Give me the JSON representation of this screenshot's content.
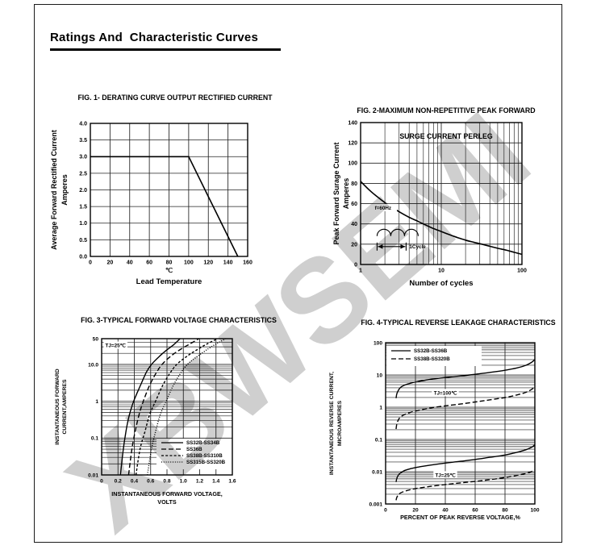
{
  "page": {
    "title": "Ratings And  Characteristic Curves",
    "watermark": "XBWSEMI"
  },
  "chart_data": [
    {
      "id": "fig1",
      "type": "line",
      "title_lines": [
        "FIG. 1- DERATING CURVE OUTPUT RECTIFIED CURRENT"
      ],
      "xlabel_lines": [
        "℃",
        "Lead Temperature"
      ],
      "ylabel_lines": [
        "Average Forward Rectified Current",
        "Amperes"
      ],
      "x": {
        "scale": "linear",
        "min": 0,
        "max": 160,
        "ticks": [
          "0",
          "20",
          "40",
          "60",
          "80",
          "100",
          "120",
          "140",
          "160"
        ]
      },
      "y": {
        "scale": "linear",
        "min": 0,
        "max": 4,
        "ticks": [
          "0.0",
          "0.5",
          "1.0",
          "1.5",
          "2.0",
          "2.5",
          "3.0",
          "3.5",
          "4.0"
        ]
      },
      "series": [
        {
          "name": "derating-curve",
          "dash": "solid",
          "smooth": false,
          "points": [
            [
              0,
              3
            ],
            [
              100,
              3
            ],
            [
              150,
              0
            ]
          ]
        }
      ]
    },
    {
      "id": "fig2",
      "type": "line",
      "title_lines": [
        "FIG. 2-MAXIMUM NON-REPETITIVE PEAK FORWARD",
        "SURGE CURRENT PERLEG"
      ],
      "xlabel_lines": [
        "Number of cycles"
      ],
      "ylabel_lines": [
        "Peak Forward Surage Current",
        "Amperes"
      ],
      "x": {
        "scale": "log",
        "min": 1,
        "max": 100,
        "ticks": [
          "1",
          "10",
          "100"
        ]
      },
      "y": {
        "scale": "linear",
        "min": 0,
        "max": 140,
        "ticks": [
          "0",
          "20",
          "40",
          "60",
          "80",
          "100",
          "120",
          "140"
        ]
      },
      "annotations": [
        {
          "text": "f=60Hz",
          "x": 1.5,
          "y": 56,
          "anchor": "start"
        }
      ],
      "cycle_glyph": {
        "label": "1Cycle",
        "x": 1.6,
        "y": 28
      },
      "series": [
        {
          "name": "surge-current",
          "dash": "solid",
          "smooth": true,
          "points": [
            [
              1,
              82
            ],
            [
              1.3,
              73
            ],
            [
              1.6,
              67
            ],
            [
              2,
              61
            ],
            [
              2.5,
              56
            ],
            [
              3,
              52
            ],
            [
              4,
              46.5
            ],
            [
              5,
              43
            ],
            [
              6,
              40
            ],
            [
              7,
              37.5
            ],
            [
              8,
              35.5
            ],
            [
              10,
              32.5
            ],
            [
              13,
              29
            ],
            [
              16,
              26.5
            ],
            [
              20,
              24
            ],
            [
              25,
              22
            ],
            [
              30,
              20.5
            ],
            [
              40,
              18
            ],
            [
              50,
              16
            ],
            [
              65,
              14
            ],
            [
              80,
              12
            ],
            [
              100,
              10
            ]
          ]
        }
      ]
    },
    {
      "id": "fig3",
      "type": "line",
      "title_lines": [
        "FIG. 3-TYPICAL FORWARD VOLTAGE CHARACTERISTICS"
      ],
      "xlabel_lines": [
        "INSTANTANEOUS FORWARD VOLTAGE,",
        "VOLTS"
      ],
      "ylabel_lines": [
        "INSTANTANEOUS FORWARD",
        "CURRENT,AMPERES"
      ],
      "x": {
        "scale": "linear",
        "min": 0,
        "max": 1.6,
        "ticks": [
          "0",
          "0.2",
          "0.4",
          "0.6",
          "0.8",
          "1.0",
          "1.2",
          "1.4",
          "1.6"
        ]
      },
      "y": {
        "scale": "log",
        "min": 0.01,
        "max": 50,
        "ticks": [
          "0.01",
          "0.1",
          "1",
          "10.0",
          "50"
        ]
      },
      "annotations": [
        {
          "text": "TJ=25℃",
          "x": 0.045,
          "y": 33,
          "anchor": "start"
        }
      ],
      "legend": {
        "items": [
          {
            "label": "SS32B-SS34B",
            "dash": "solid"
          },
          {
            "label": "SS36B",
            "dash": "long-dash"
          },
          {
            "label": "SS38B-SS310B",
            "dash": "short-dash"
          },
          {
            "label": "SS315B-SS320B",
            "dash": "dot"
          }
        ]
      },
      "series": [
        {
          "name": "SS32B-SS34B",
          "dash": "solid",
          "smooth": true,
          "points": [
            [
              0.23,
              0.01
            ],
            [
              0.26,
              0.04
            ],
            [
              0.29,
              0.12
            ],
            [
              0.33,
              0.35
            ],
            [
              0.38,
              0.85
            ],
            [
              0.43,
              1.6
            ],
            [
              0.49,
              3.2
            ],
            [
              0.55,
              6.3
            ],
            [
              0.61,
              10
            ],
            [
              0.7,
              16
            ],
            [
              0.79,
              24
            ],
            [
              0.88,
              34
            ],
            [
              0.96,
              50
            ]
          ]
        },
        {
          "name": "SS36B",
          "dash": "long-dash",
          "smooth": true,
          "points": [
            [
              0.33,
              0.01
            ],
            [
              0.37,
              0.05
            ],
            [
              0.41,
              0.15
            ],
            [
              0.46,
              0.45
            ],
            [
              0.51,
              1
            ],
            [
              0.58,
              2.5
            ],
            [
              0.66,
              5.5
            ],
            [
              0.74,
              10
            ],
            [
              0.85,
              17
            ],
            [
              0.97,
              26
            ],
            [
              1.08,
              36
            ],
            [
              1.19,
              50
            ]
          ]
        },
        {
          "name": "SS38B-SS310B",
          "dash": "short-dash",
          "smooth": true,
          "points": [
            [
              0.42,
              0.01
            ],
            [
              0.47,
              0.05
            ],
            [
              0.53,
              0.15
            ],
            [
              0.59,
              0.45
            ],
            [
              0.66,
              1
            ],
            [
              0.74,
              2.5
            ],
            [
              0.83,
              5.5
            ],
            [
              0.92,
              10
            ],
            [
              1.05,
              17
            ],
            [
              1.18,
              26
            ],
            [
              1.3,
              37
            ],
            [
              1.42,
              50
            ]
          ]
        },
        {
          "name": "SS315B-SS320B",
          "dash": "dot",
          "smooth": true,
          "points": [
            [
              0.56,
              0.01
            ],
            [
              0.61,
              0.05
            ],
            [
              0.66,
              0.15
            ],
            [
              0.72,
              0.45
            ],
            [
              0.79,
              1
            ],
            [
              0.87,
              2.5
            ],
            [
              0.96,
              5.5
            ],
            [
              1.05,
              10
            ],
            [
              1.18,
              17
            ],
            [
              1.31,
              27
            ],
            [
              1.42,
              38
            ],
            [
              1.52,
              50
            ]
          ]
        }
      ]
    },
    {
      "id": "fig4",
      "type": "line",
      "title_lines": [
        "FIG. 4-TYPICAL REVERSE LEAKAGE CHARACTERISTICS"
      ],
      "xlabel_lines": [
        "PERCENT OF PEAK REVERSE VOLTAGE,%"
      ],
      "ylabel_lines": [
        "INSTANTANEOUS REVERSE CURRENT,",
        "MICROAMPERES"
      ],
      "x": {
        "scale": "linear",
        "min": 0,
        "max": 100,
        "ticks": [
          "0",
          "20",
          "40",
          "60",
          "80",
          "100"
        ]
      },
      "y": {
        "scale": "log",
        "min": 0.001,
        "max": 100,
        "ticks": [
          "100",
          "10",
          "1",
          "0.1",
          "0.01",
          "0.001"
        ]
      },
      "annotations": [
        {
          "text": "TJ=100℃",
          "x": 40,
          "y": 2.8,
          "anchor": "middle"
        },
        {
          "text": "TJ=25℃",
          "x": 40,
          "y": 0.0079,
          "anchor": "middle"
        }
      ],
      "legend": {
        "items": [
          {
            "label": "SS32B-SS36B",
            "dash": "solid"
          },
          {
            "label": "SS38B-SS320B",
            "dash": "long-dash"
          }
        ]
      },
      "series": [
        {
          "name": "SS32B-SS36B TJ100",
          "dash": "solid",
          "smooth": true,
          "points": [
            [
              7,
              1.9
            ],
            [
              7.5,
              2.6
            ],
            [
              8.5,
              3.3
            ],
            [
              10,
              4.1
            ],
            [
              13,
              4.9
            ],
            [
              17,
              5.6
            ],
            [
              22,
              6.3
            ],
            [
              30,
              7.3
            ],
            [
              40,
              8.3
            ],
            [
              50,
              9.3
            ],
            [
              60,
              10.5
            ],
            [
              70,
              12
            ],
            [
              80,
              14
            ],
            [
              88,
              16.5
            ],
            [
              94,
              20
            ],
            [
              98,
              25
            ],
            [
              100,
              30
            ]
          ]
        },
        {
          "name": "SS38B-SS320B TJ100",
          "dash": "long-dash",
          "smooth": true,
          "points": [
            [
              7,
              0.21
            ],
            [
              7.5,
              0.3
            ],
            [
              8.5,
              0.4
            ],
            [
              10,
              0.5
            ],
            [
              13,
              0.6
            ],
            [
              17,
              0.7
            ],
            [
              22,
              0.8
            ],
            [
              30,
              0.95
            ],
            [
              40,
              1.1
            ],
            [
              50,
              1.25
            ],
            [
              60,
              1.45
            ],
            [
              70,
              1.7
            ],
            [
              80,
              2.0
            ],
            [
              88,
              2.4
            ],
            [
              94,
              2.9
            ],
            [
              98,
              3.6
            ],
            [
              100,
              4.4
            ]
          ]
        },
        {
          "name": "SS32B-SS36B TJ25",
          "dash": "solid",
          "smooth": true,
          "points": [
            [
              7,
              0.0048
            ],
            [
              7.5,
              0.0062
            ],
            [
              8.5,
              0.0078
            ],
            [
              10,
              0.0092
            ],
            [
              13,
              0.011
            ],
            [
              17,
              0.0125
            ],
            [
              22,
              0.014
            ],
            [
              30,
              0.016
            ],
            [
              40,
              0.0185
            ],
            [
              50,
              0.021
            ],
            [
              60,
              0.024
            ],
            [
              70,
              0.028
            ],
            [
              80,
              0.033
            ],
            [
              88,
              0.04
            ],
            [
              94,
              0.048
            ],
            [
              98,
              0.058
            ],
            [
              100,
              0.068
            ]
          ]
        },
        {
          "name": "SS38B-SS320B TJ25",
          "dash": "long-dash",
          "smooth": true,
          "points": [
            [
              7,
              0.0013
            ],
            [
              7.5,
              0.0016
            ],
            [
              8.5,
              0.0019
            ],
            [
              10,
              0.0022
            ],
            [
              13,
              0.0025
            ],
            [
              17,
              0.0028
            ],
            [
              22,
              0.0031
            ],
            [
              30,
              0.0035
            ],
            [
              40,
              0.004
            ],
            [
              50,
              0.0045
            ],
            [
              60,
              0.005
            ],
            [
              70,
              0.0057
            ],
            [
              80,
              0.0066
            ],
            [
              88,
              0.0077
            ],
            [
              94,
              0.0089
            ],
            [
              98,
              0.0102
            ],
            [
              100,
              0.0115
            ]
          ]
        }
      ]
    }
  ]
}
